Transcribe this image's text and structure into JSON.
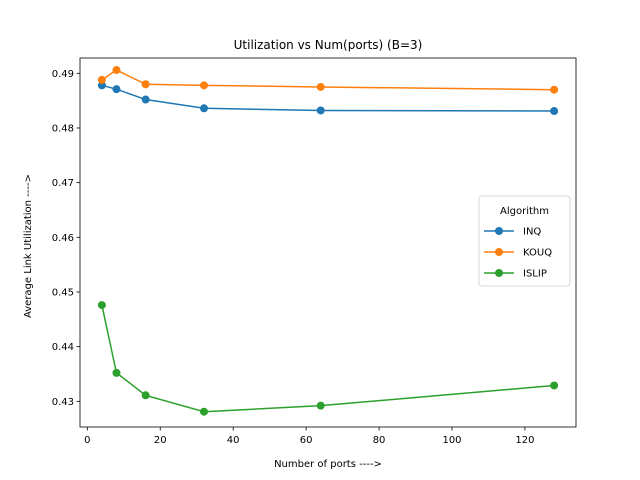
{
  "chart_data": {
    "type": "line",
    "title": "Utilization vs Num(ports) (B=3)",
    "xlabel": "Number of ports ---->",
    "ylabel": "Average Link Utilization ---->",
    "xlim": [
      -2,
      134
    ],
    "ylim": [
      0.4253,
      0.4928
    ],
    "xticks": [
      0,
      20,
      40,
      60,
      80,
      100,
      120
    ],
    "yticks": [
      0.43,
      0.44,
      0.45,
      0.46,
      0.47,
      0.48,
      0.49
    ],
    "ytick_labels": [
      "0.43",
      "0.44",
      "0.45",
      "0.46",
      "0.47",
      "0.48",
      "0.49"
    ],
    "grid": false,
    "legend": {
      "title": "Algorithm",
      "placement": "center-right"
    },
    "x": [
      4,
      8,
      16,
      32,
      64,
      128
    ],
    "series": [
      {
        "name": "INQ",
        "color": "#1f77b4",
        "values": [
          0.4878,
          0.4871,
          0.4852,
          0.4836,
          0.4832,
          0.4831
        ]
      },
      {
        "name": "KOUQ",
        "color": "#ff7f0e",
        "values": [
          0.4888,
          0.4906,
          0.488,
          0.4878,
          0.4875,
          0.487
        ]
      },
      {
        "name": "ISLIP",
        "color": "#2ca02c",
        "values": [
          0.4476,
          0.4352,
          0.4311,
          0.4281,
          0.4292,
          0.4329
        ]
      }
    ]
  }
}
